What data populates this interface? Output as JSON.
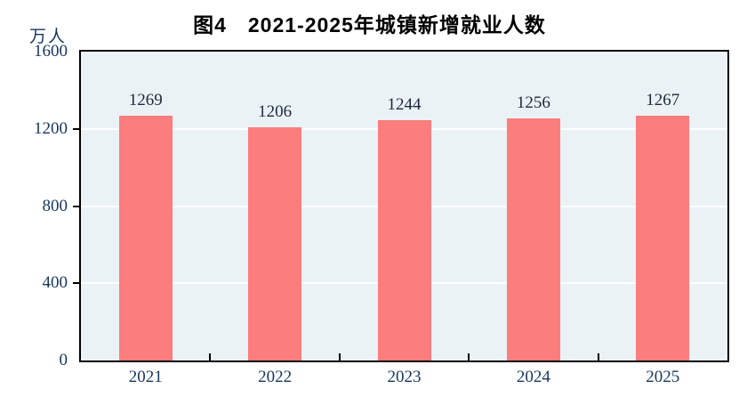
{
  "chart_data": {
    "type": "bar",
    "title": "图4　2021-2025年城镇新增就业人数",
    "categories": [
      "2021",
      "2022",
      "2023",
      "2024",
      "2025"
    ],
    "values": [
      1269,
      1206,
      1244,
      1256,
      1267
    ],
    "xlabel": "",
    "ylabel": "万人",
    "ylim": [
      0,
      1600
    ],
    "yticks": [
      0,
      400,
      800,
      1200,
      1600
    ],
    "grid": true,
    "legend_position": "none",
    "colors": {
      "bar": "#fb7d7d",
      "plot_background": "#ebf2f6",
      "gridline": "#ffffff",
      "axis": "#000000",
      "tick_label": "#17365d",
      "value_label": "#1b2a3b",
      "title": "#000000"
    }
  }
}
